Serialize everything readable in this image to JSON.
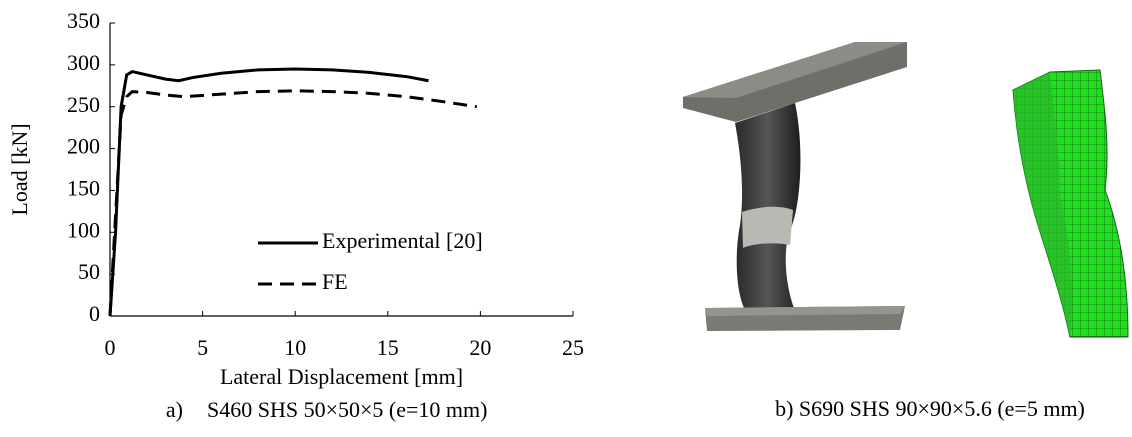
{
  "chart_data": {
    "type": "line",
    "xlabel": "Lateral Displacement [mm]",
    "ylabel": "Load [kN]",
    "xlim": [
      0,
      25
    ],
    "ylim": [
      0,
      350
    ],
    "xticks": [
      0,
      5,
      10,
      15,
      20,
      25
    ],
    "yticks": [
      0,
      50,
      100,
      150,
      200,
      250,
      300,
      350
    ],
    "grid": false,
    "legend": "lower right",
    "series": [
      {
        "name": "Experimental [20]",
        "color": "#000000",
        "dash": "solid",
        "x": [
          0,
          0.3,
          0.6,
          0.9,
          1.2,
          2,
          3,
          3.7,
          4.5,
          6,
          8,
          10,
          12,
          14,
          16,
          17.2
        ],
        "values": [
          0,
          100,
          250,
          288,
          292,
          288,
          283,
          281,
          285,
          290,
          294,
          295,
          294,
          291,
          286,
          281
        ]
      },
      {
        "name": "FE",
        "color": "#000000",
        "dash": "dashed",
        "x": [
          0,
          0.3,
          0.6,
          0.9,
          1.2,
          2,
          3,
          4,
          6,
          8,
          10,
          12,
          14,
          16,
          18,
          19.8
        ],
        "values": [
          0,
          120,
          240,
          262,
          268,
          267,
          264,
          262,
          265,
          268,
          269,
          268,
          266,
          262,
          256,
          250
        ]
      }
    ]
  },
  "captions": {
    "a_label": "a)",
    "a_text": "S460 SHS 50×50×5 (e=10 mm)",
    "b": "b) S690 SHS 90×90×5.6 (e=5 mm)"
  }
}
